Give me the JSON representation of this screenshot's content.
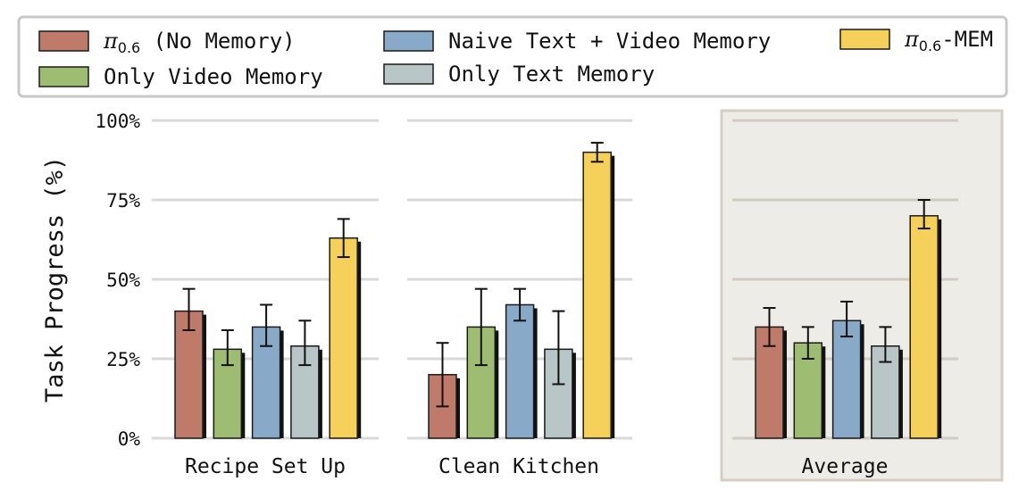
{
  "chart_data": {
    "type": "bar",
    "ylabel": "Task Progress (%)",
    "ylim": [
      0,
      100
    ],
    "yticks": [
      "0%",
      "25%",
      "50%",
      "75%",
      "100%"
    ],
    "grid": true,
    "legend_position": "top",
    "categories": [
      "Recipe Set Up",
      "Clean Kitchen",
      "Average"
    ],
    "highlighted_category": "Average",
    "series": [
      {
        "name": "π0.6 (No Memory)",
        "name_base": "π",
        "name_sub": "0.6",
        "name_rest": " (No Memory)",
        "color": "#c07a6a",
        "values": [
          40,
          20,
          35
        ],
        "errors": [
          [
            34,
            47
          ],
          [
            10,
            30
          ],
          [
            29,
            41
          ]
        ]
      },
      {
        "name": "Only Video Memory",
        "color": "#9ebd72",
        "values": [
          28,
          35,
          30
        ],
        "errors": [
          [
            23,
            34
          ],
          [
            23,
            47
          ],
          [
            25,
            35
          ]
        ]
      },
      {
        "name": "Naive Text + Video Memory",
        "color": "#88a9c8",
        "values": [
          35,
          42,
          37
        ],
        "errors": [
          [
            29,
            42
          ],
          [
            37,
            47
          ],
          [
            32,
            43
          ]
        ]
      },
      {
        "name": "Only Text Memory",
        "color": "#b8c6c7",
        "values": [
          29,
          28,
          29
        ],
        "errors": [
          [
            23,
            37
          ],
          [
            17,
            40
          ],
          [
            24,
            35
          ]
        ]
      },
      {
        "name": "π0.6-MEM",
        "name_base": "π",
        "name_sub": "0.6",
        "name_rest": "-MEM",
        "color": "#f5d15c",
        "values": [
          63,
          90,
          70
        ],
        "errors": [
          [
            57,
            69
          ],
          [
            87,
            93
          ],
          [
            66,
            75
          ]
        ]
      }
    ]
  }
}
